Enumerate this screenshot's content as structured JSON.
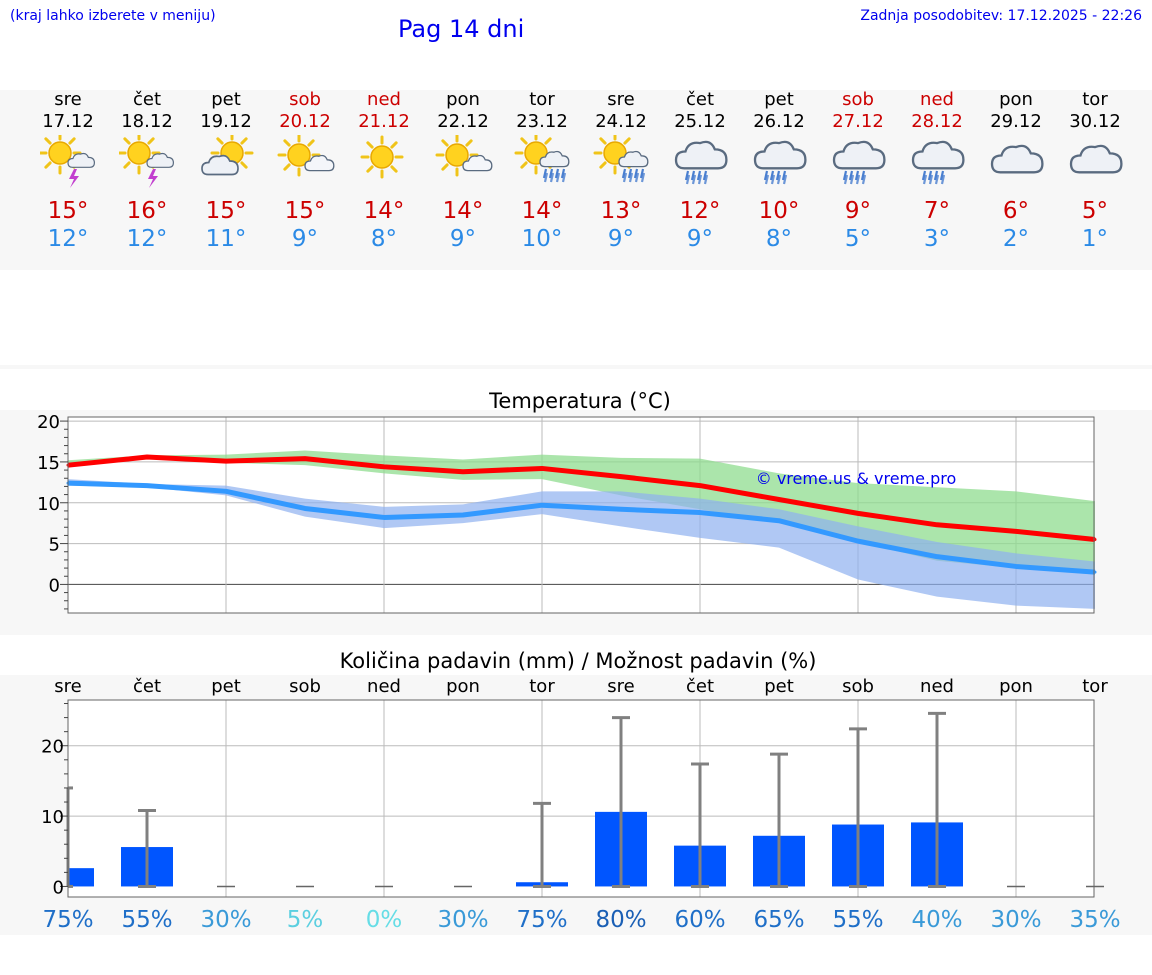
{
  "header": {
    "hint": "(kraj lahko izberete v meniju)",
    "title": "Pag 14 dni",
    "updated": "Zadnja posodobitev: 17.12.2025 - 22:26"
  },
  "days": [
    {
      "name": "sre",
      "date": "17.12",
      "weekend": false,
      "icon": "sun-cloud-thunder-icon",
      "tmax": "15°",
      "tmin": "12°"
    },
    {
      "name": "čet",
      "date": "18.12",
      "weekend": false,
      "icon": "sun-cloud-thunder-icon",
      "tmax": "16°",
      "tmin": "12°"
    },
    {
      "name": "pet",
      "date": "19.12",
      "weekend": false,
      "icon": "sun-behind-cloud-icon",
      "tmax": "15°",
      "tmin": "11°"
    },
    {
      "name": "sob",
      "date": "20.12",
      "weekend": true,
      "icon": "sun-small-cloud-icon",
      "tmax": "15°",
      "tmin": "9°"
    },
    {
      "name": "ned",
      "date": "21.12",
      "weekend": true,
      "icon": "sun-icon",
      "tmax": "14°",
      "tmin": "8°"
    },
    {
      "name": "pon",
      "date": "22.12",
      "weekend": false,
      "icon": "sun-small-cloud-icon",
      "tmax": "14°",
      "tmin": "9°"
    },
    {
      "name": "tor",
      "date": "23.12",
      "weekend": false,
      "icon": "sun-cloud-rain-icon",
      "tmax": "14°",
      "tmin": "10°"
    },
    {
      "name": "sre",
      "date": "24.12",
      "weekend": false,
      "icon": "sun-cloud-rain-icon",
      "tmax": "13°",
      "tmin": "9°"
    },
    {
      "name": "čet",
      "date": "25.12",
      "weekend": false,
      "icon": "cloud-rain-icon",
      "tmax": "12°",
      "tmin": "9°"
    },
    {
      "name": "pet",
      "date": "26.12",
      "weekend": false,
      "icon": "cloud-rain-icon",
      "tmax": "10°",
      "tmin": "8°"
    },
    {
      "name": "sob",
      "date": "27.12",
      "weekend": true,
      "icon": "cloud-rain-icon",
      "tmax": "9°",
      "tmin": "5°"
    },
    {
      "name": "ned",
      "date": "28.12",
      "weekend": true,
      "icon": "cloud-rain-icon",
      "tmax": "7°",
      "tmin": "3°"
    },
    {
      "name": "pon",
      "date": "29.12",
      "weekend": false,
      "icon": "cloud-icon",
      "tmax": "6°",
      "tmin": "2°"
    },
    {
      "name": "tor",
      "date": "30.12",
      "weekend": false,
      "icon": "cloud-icon",
      "tmax": "5°",
      "tmin": "1°"
    }
  ],
  "colors": {
    "max_line": "#ff0000",
    "max_band": "#8fdc8f",
    "min_line": "#3399ff",
    "min_band": "#8fb0f0",
    "bar": "#0055ff",
    "whisker": "#808080",
    "red_text": "#cc0000",
    "blue_text": "#2b8ae6"
  },
  "chart_data": [
    {
      "type": "line",
      "title": "Temperatura (°C)",
      "watermark": "© vreme.us & vreme.pro",
      "ylim": [
        -3.5,
        20.5
      ],
      "yticks": [
        0,
        5,
        10,
        15,
        20
      ],
      "categories": [
        "sre",
        "čet",
        "pet",
        "sob",
        "ned",
        "pon",
        "tor",
        "sre",
        "čet",
        "pet",
        "sob",
        "ned",
        "pon",
        "tor"
      ],
      "series": [
        {
          "name": "max",
          "values": [
            14.6,
            15.6,
            15.1,
            15.4,
            14.4,
            13.8,
            14.2,
            13.2,
            12.1,
            10.4,
            8.7,
            7.3,
            6.5,
            5.5
          ],
          "band_low": [
            14.4,
            15.4,
            14.9,
            14.6,
            13.6,
            12.8,
            12.9,
            10.9,
            9.2,
            7.5,
            5.2,
            2.9,
            2.0,
            1.2
          ],
          "band_high": [
            15.2,
            15.8,
            15.9,
            16.4,
            15.8,
            15.3,
            15.9,
            15.5,
            15.4,
            13.6,
            12.4,
            11.9,
            11.4,
            10.2
          ]
        },
        {
          "name": "min",
          "values": [
            12.4,
            12.1,
            11.4,
            9.3,
            8.2,
            8.5,
            9.7,
            9.2,
            8.8,
            7.8,
            5.3,
            3.4,
            2.2,
            1.5
          ],
          "band_low": [
            12.1,
            11.9,
            10.9,
            8.3,
            6.9,
            7.5,
            8.6,
            7.1,
            5.7,
            4.5,
            0.6,
            -1.5,
            -2.6,
            -3.0
          ],
          "band_high": [
            12.9,
            12.3,
            12.1,
            10.5,
            9.5,
            9.8,
            11.4,
            11.4,
            10.5,
            9.2,
            7.1,
            5.2,
            3.8,
            2.8
          ]
        }
      ]
    },
    {
      "type": "bar",
      "title": "Količina padavin (mm) / Možnost padavin (%)",
      "ylim": [
        -1.5,
        26.5
      ],
      "yticks": [
        0,
        10,
        20
      ],
      "categories": [
        "sre",
        "čet",
        "pet",
        "sob",
        "ned",
        "pon",
        "tor",
        "sre",
        "čet",
        "pet",
        "sob",
        "ned",
        "pon",
        "tor"
      ],
      "values": [
        2.6,
        5.6,
        0,
        0,
        0,
        0,
        0.6,
        10.6,
        5.8,
        7.2,
        8.8,
        9.1,
        0,
        0
      ],
      "error_high": [
        14.0,
        10.8,
        0,
        0,
        0,
        0,
        11.8,
        24.0,
        17.4,
        18.8,
        22.4,
        24.6,
        0,
        0
      ],
      "error_low": [
        0,
        0,
        0,
        0,
        0,
        0,
        0,
        0,
        0,
        0,
        0,
        0,
        0,
        0
      ],
      "probability": [
        "75%",
        "55%",
        "30%",
        "5%",
        "0%",
        "30%",
        "75%",
        "80%",
        "60%",
        "65%",
        "55%",
        "40%",
        "30%",
        "35%"
      ],
      "probability_colors": [
        "#1f6fc8",
        "#1f6fc8",
        "#3a9ad8",
        "#5ccfe0",
        "#66dde6",
        "#3a9ad8",
        "#1f6fc8",
        "#1a5fb5",
        "#1f6fc8",
        "#1f6fc8",
        "#1f6fc8",
        "#3a9ad8",
        "#3a9ad8",
        "#3a9ad8"
      ]
    }
  ]
}
